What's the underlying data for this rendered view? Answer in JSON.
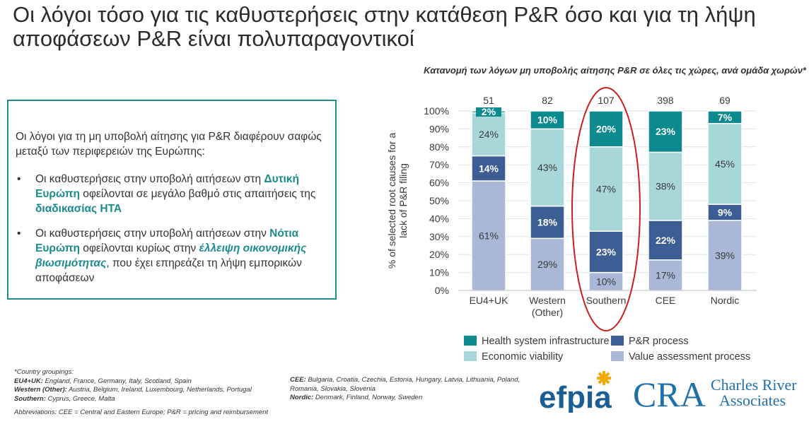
{
  "slide": {
    "title": "Οι λόγοι τόσο για τις καθυστερήσεις στην κατάθεση P&R όσο και για τη λήψη αποφάσεων P&R είναι πολυπαραγοντικοί"
  },
  "textbox": {
    "intro": "Οι λόγοι για τη μη υποβολή αίτησης για P&R διαφέρουν σαφώς μεταξύ των περιφερειών της Ευρώπης:",
    "bullet_char": "•",
    "bullet1": {
      "t1": "Οι καθυστερήσεις στην υποβολή αιτήσεων στη ",
      "h1": "Δυτική Ευρώπη",
      "t2": " οφείλονται σε μεγάλο βαθμό στις απαιτήσεις της ",
      "h2": "διαδικασίας HTA"
    },
    "bullet2": {
      "t1": "Οι καθυστερήσεις στην υποβολή αιτήσεων στην ",
      "h1": "Νότια Ευρώπη",
      "t2": " οφείλονται κυρίως στην ",
      "h2": "έλλειψη οικονομικής βιωσιμότητας",
      "t3": ", που έχει επηρεάζει τη λήψη εμπορικών αποφάσεων"
    }
  },
  "chart_data": {
    "type": "bar",
    "stacked": true,
    "normalized": true,
    "title": "Κατανομή των λόγων μη υποβολής αίτησης P&R σε όλες τις χώρες, ανά ομάδα χωρών*",
    "ylabel": "% of selected root causes for a lack of P&R filing",
    "ylim": [
      0,
      100
    ],
    "yticks": [
      "0%",
      "10%",
      "20%",
      "30%",
      "40%",
      "50%",
      "60%",
      "70%",
      "80%",
      "90%",
      "100%"
    ],
    "categories": [
      [
        "EU4+UK"
      ],
      [
        "Western",
        "(Other)"
      ],
      [
        "Southern"
      ],
      [
        "CEE"
      ],
      [
        "Nordic"
      ]
    ],
    "totals": [
      "51",
      "82",
      "107",
      "398",
      "69"
    ],
    "highlight_category": 2,
    "series": [
      {
        "name": "Value assessment process",
        "color": "#a9b8d6",
        "values": [
          61,
          29,
          10,
          17,
          39
        ],
        "labels": [
          "61%",
          "29%",
          "10%",
          "17%",
          "39%"
        ]
      },
      {
        "name": "P&R process",
        "color": "#3d5e95",
        "values": [
          14,
          18,
          23,
          22,
          9
        ],
        "labels": [
          "14%",
          "18%",
          "23%",
          "22%",
          "9%"
        ]
      },
      {
        "name": "Economic viability",
        "color": "#a7d7d9",
        "values": [
          24,
          43,
          47,
          38,
          45
        ],
        "labels": [
          "24%",
          "43%",
          "47%",
          "38%",
          "45%"
        ]
      },
      {
        "name": "Health system infrastructure",
        "color": "#0c8a8f",
        "values": [
          2,
          10,
          20,
          23,
          7
        ],
        "labels": [
          "2%",
          "10%",
          "20%",
          "23%",
          "7%"
        ]
      }
    ],
    "legend_order": [
      3,
      1,
      2,
      0
    ],
    "legend_position": "bottom",
    "highlight_color": "#c8201f"
  },
  "footnotes": {
    "heading": "*Country groupings:",
    "eu4_label": "EU4+UK:",
    "eu4": "England, France, Germany, Italy, Scotland, Spain",
    "western_label": "Western (Other):",
    "western": "Austria, Belgium, Ireland, Luxembourg, Netherlands, Portugal",
    "southern_label": "Southern:",
    "southern": "Cyprus, Greece, Malta",
    "cee_label": "CEE:",
    "cee": "Bulgaria, Croatia, Czechia, Estonia, Hungary, Latvia, Lithuania, Poland, Romania, Slovakia, Slovenia",
    "nordic_label": "Nordic:",
    "nordic": "Denmark, Finland, Norway, Sweden",
    "abbrev": "Abbreviations: CEE = Central and Eastern Europe; P&R = pricing and reimbursement"
  },
  "logos": {
    "efpia": "efpia",
    "cra_mark": "CRA",
    "cra_line1": "Charles River",
    "cra_line2": "Associates",
    "efpia_color": "#1a5e96",
    "efpia_star_color": "#f2a900",
    "cra_color": "#1f6fa9"
  }
}
